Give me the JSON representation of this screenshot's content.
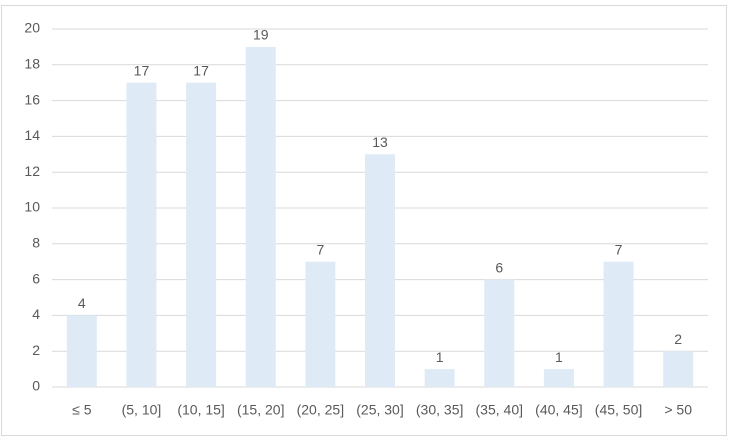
{
  "chart_data": {
    "type": "bar",
    "categories": [
      "≤ 5",
      "(5, 10]",
      "(10, 15]",
      "(15, 20]",
      "(20, 25]",
      "(25, 30]",
      "(30, 35]",
      "(35, 40]",
      "(40, 45]",
      "(45, 50]",
      "> 50"
    ],
    "values": [
      4,
      17,
      17,
      19,
      7,
      13,
      1,
      6,
      1,
      7,
      2
    ],
    "color": "#deebf7",
    "ylim": [
      0,
      20
    ],
    "yticks": [
      0,
      2,
      4,
      6,
      8,
      10,
      12,
      14,
      16,
      18,
      20
    ],
    "grid": true
  }
}
